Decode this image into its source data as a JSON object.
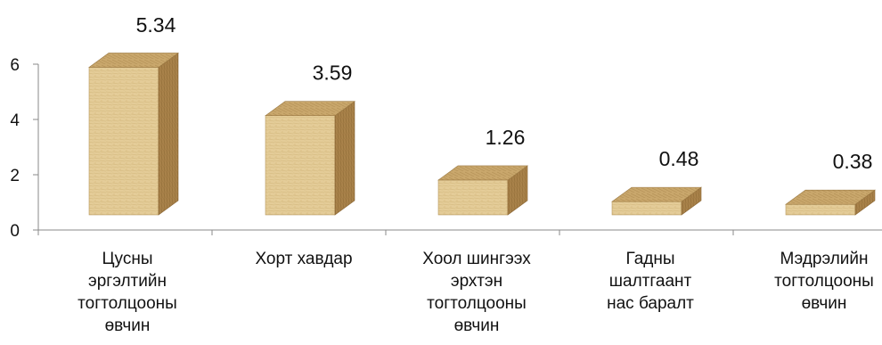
{
  "chart_data": {
    "type": "bar",
    "categories": [
      [
        "Цусны",
        "эргэлтийн",
        "тогтолцооны",
        "өвчин"
      ],
      [
        "Хорт хавдар"
      ],
      [
        "Хоол шингээх",
        "эрхтэн",
        "тогтолцооны",
        "өвчин"
      ],
      [
        "Гадны",
        "шалтгаант",
        "нас баралт"
      ],
      [
        "Мэдрэлийн",
        "тогтолцооны",
        "өвчин"
      ]
    ],
    "values": [
      5.34,
      3.59,
      1.26,
      0.48,
      0.38
    ],
    "data_labels": [
      "5.34",
      "3.59",
      "1.26",
      "0.48",
      "0.38"
    ],
    "yticks": [
      0,
      2,
      4,
      6
    ],
    "ytick_labels": [
      "0",
      "2",
      "4",
      "6"
    ],
    "ylim": [
      0,
      6.2
    ],
    "grid": false,
    "legend": "none",
    "style": "3d-box",
    "colors": {
      "front": "#e4cc98",
      "side": "#a9824a",
      "top": "#c9a76c",
      "axis": "#8a8a8a"
    }
  }
}
